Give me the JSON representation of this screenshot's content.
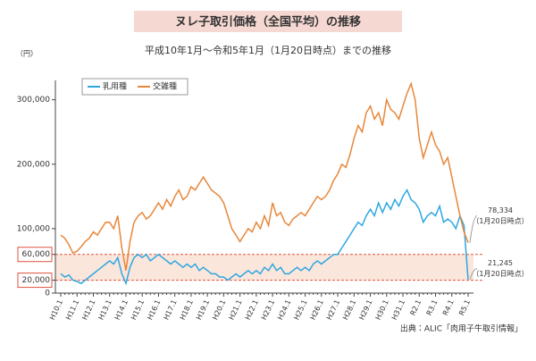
{
  "chart_data": {
    "type": "line",
    "title": "ヌレ子取引価格（全国平均）の推移",
    "subtitle": "平成10年1月～令和5年1月（1月20日時点）までの推移",
    "y_unit": "（円）",
    "source": "出典：ALIC「肉用子牛取引情報」",
    "categories": [
      "H10.1",
      null,
      null,
      null,
      "H11.1",
      null,
      null,
      null,
      "H12.1",
      null,
      null,
      null,
      "H13.1",
      null,
      null,
      null,
      "H14.1",
      null,
      null,
      null,
      "H15.1",
      null,
      null,
      null,
      "H16.1",
      null,
      null,
      null,
      "H17.1",
      null,
      null,
      null,
      "H18.1",
      null,
      null,
      null,
      "H19.1",
      null,
      null,
      null,
      "H20.1",
      null,
      null,
      null,
      "H21.1",
      null,
      null,
      null,
      "H22.1",
      null,
      null,
      null,
      "H23.1",
      null,
      null,
      null,
      "H24.1",
      null,
      null,
      null,
      "H25.1",
      null,
      null,
      null,
      "H26.1",
      null,
      null,
      null,
      "H27.1",
      null,
      null,
      null,
      "H28.1",
      null,
      null,
      null,
      "H29.1",
      null,
      null,
      null,
      "H30.1",
      null,
      null,
      null,
      "H31.1",
      null,
      null,
      null,
      "R2.1",
      null,
      null,
      null,
      "R3.1",
      null,
      null,
      null,
      "R4.1",
      null,
      null,
      null,
      "R5.1"
    ],
    "series": [
      {
        "name": "乳用種",
        "color": "#2ea7e0",
        "end_label": "21,245",
        "end_note": "（1月20日時点）",
        "values": [
          30000,
          25000,
          28000,
          20000,
          18000,
          15000,
          20000,
          25000,
          30000,
          35000,
          40000,
          45000,
          50000,
          45000,
          55000,
          30000,
          15000,
          40000,
          55000,
          60000,
          55000,
          60000,
          50000,
          55000,
          60000,
          55000,
          50000,
          45000,
          50000,
          45000,
          40000,
          45000,
          40000,
          45000,
          35000,
          40000,
          35000,
          30000,
          30000,
          25000,
          25000,
          20000,
          25000,
          30000,
          25000,
          30000,
          35000,
          30000,
          35000,
          30000,
          40000,
          35000,
          45000,
          35000,
          40000,
          30000,
          30000,
          35000,
          40000,
          35000,
          40000,
          35000,
          45000,
          50000,
          45000,
          50000,
          55000,
          60000,
          60000,
          70000,
          80000,
          90000,
          100000,
          110000,
          105000,
          120000,
          130000,
          120000,
          140000,
          125000,
          140000,
          130000,
          145000,
          135000,
          150000,
          160000,
          145000,
          140000,
          130000,
          110000,
          120000,
          125000,
          120000,
          135000,
          110000,
          115000,
          110000,
          100000,
          120000,
          105000,
          21245
        ]
      },
      {
        "name": "交雑種",
        "color": "#e8873a",
        "end_label": "78,334",
        "end_note": "（1月20日時点）",
        "values": [
          90000,
          85000,
          75000,
          62000,
          65000,
          72000,
          80000,
          85000,
          95000,
          90000,
          100000,
          110000,
          110000,
          100000,
          120000,
          70000,
          35000,
          80000,
          110000,
          120000,
          125000,
          115000,
          120000,
          130000,
          140000,
          130000,
          145000,
          135000,
          150000,
          160000,
          145000,
          150000,
          165000,
          160000,
          170000,
          180000,
          170000,
          160000,
          155000,
          150000,
          140000,
          120000,
          100000,
          90000,
          80000,
          90000,
          100000,
          95000,
          110000,
          100000,
          120000,
          105000,
          140000,
          120000,
          125000,
          110000,
          105000,
          115000,
          120000,
          125000,
          120000,
          130000,
          140000,
          150000,
          145000,
          150000,
          160000,
          175000,
          185000,
          200000,
          195000,
          215000,
          240000,
          260000,
          250000,
          280000,
          290000,
          270000,
          280000,
          260000,
          300000,
          285000,
          280000,
          270000,
          290000,
          310000,
          325000,
          300000,
          240000,
          210000,
          230000,
          250000,
          230000,
          220000,
          200000,
          210000,
          180000,
          150000,
          120000,
          95000,
          78334
        ]
      }
    ],
    "ylim": [
      0,
      330000
    ],
    "yticks": [
      0,
      {
        "value": 20000,
        "label": "20,000"
      },
      {
        "value": 60000,
        "label": "60,000"
      },
      {
        "value": 100000,
        "label": "100,000"
      },
      {
        "value": 200000,
        "label": "200,000"
      },
      {
        "value": 300000,
        "label": "300,000"
      }
    ],
    "band": {
      "from": 20000,
      "to": 60000,
      "color": "#fbe6dc",
      "edge_color": "#e0533f"
    },
    "legend": "top-left",
    "grid": false
  }
}
